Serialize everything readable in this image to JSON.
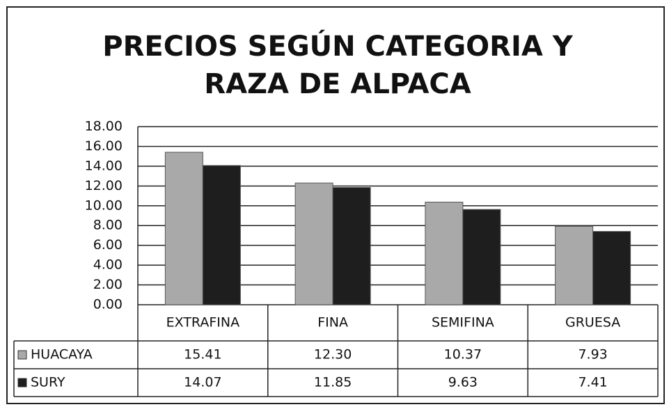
{
  "chart_data": {
    "type": "bar",
    "title": "PRECIOS SEGÚN CATEGORIA Y RAZA DE ALPACA",
    "categories": [
      "EXTRAFINA",
      "FINA",
      "SEMIFINA",
      "GRUESA"
    ],
    "series": [
      {
        "name": "HUACAYA",
        "color": "#a9a9a9",
        "values": [
          15.41,
          12.3,
          10.37,
          7.93
        ],
        "value_labels": [
          "15.41",
          "12.30",
          "10.37",
          "7.93"
        ]
      },
      {
        "name": "SURY",
        "color": "#1e1e1e",
        "values": [
          14.07,
          11.85,
          9.63,
          7.41
        ],
        "value_labels": [
          "14.07",
          "11.85",
          "9.63",
          "7.41"
        ]
      }
    ],
    "ylim": [
      0,
      18
    ],
    "yticks": [
      {
        "value": 0,
        "label": "0.00"
      },
      {
        "value": 2,
        "label": "2.00"
      },
      {
        "value": 4,
        "label": "4.00"
      },
      {
        "value": 6,
        "label": "6.00"
      },
      {
        "value": 8,
        "label": "8.00"
      },
      {
        "value": 10,
        "label": "10.00"
      },
      {
        "value": 12,
        "label": "12.00"
      },
      {
        "value": 14,
        "label": "14.00"
      },
      {
        "value": 16,
        "label": "16.00"
      },
      {
        "value": 18,
        "label": "18.00"
      }
    ],
    "grid": true,
    "data_table": true
  }
}
